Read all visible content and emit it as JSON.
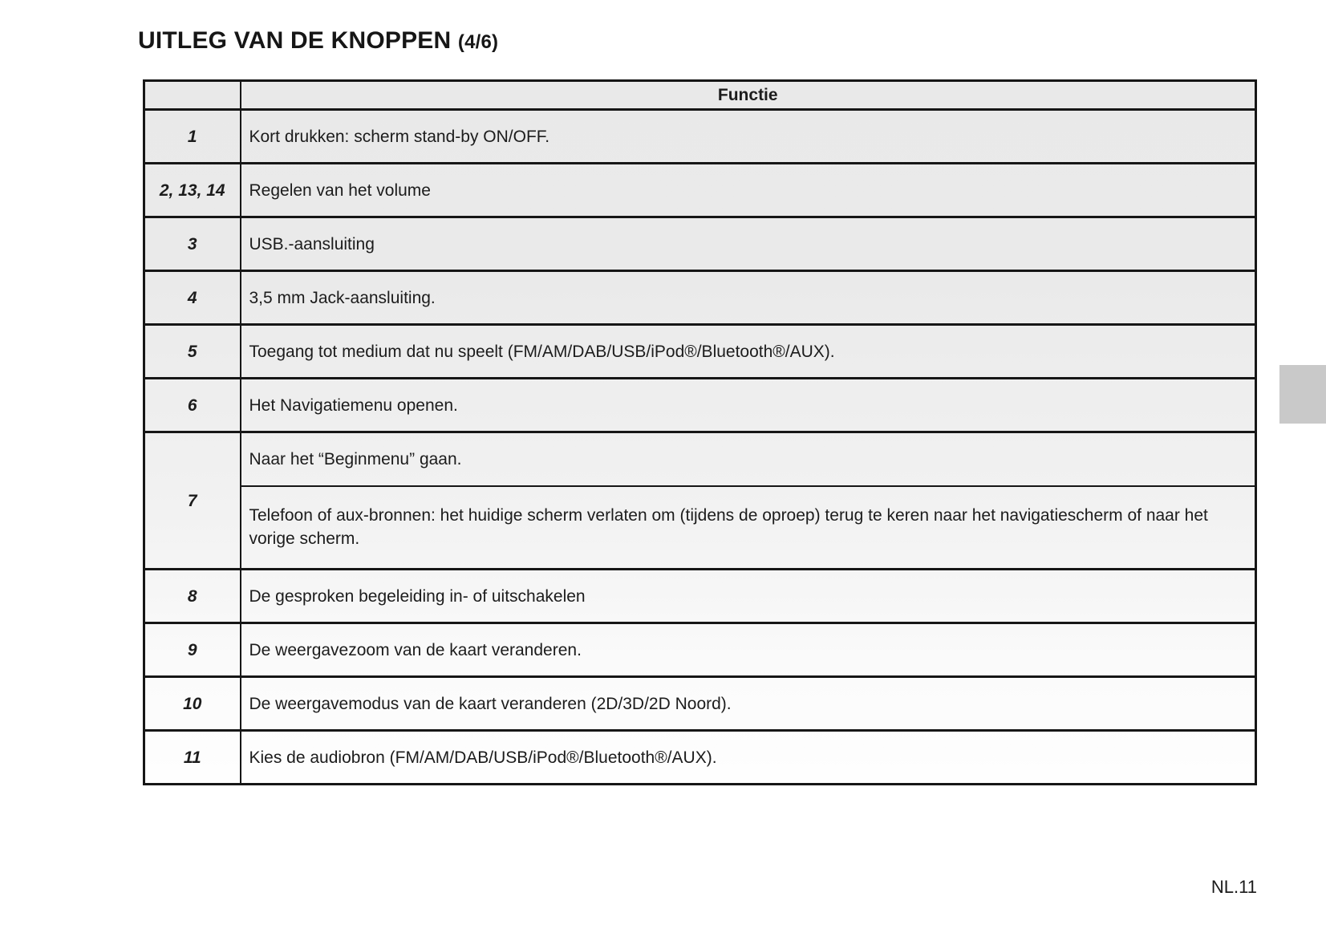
{
  "header": {
    "title": "UITLEG VAN DE KNOPPEN",
    "title_suffix": "(4/6)"
  },
  "table": {
    "header_label": "Functie",
    "rows": [
      {
        "key": "1",
        "functions": [
          "Kort drukken: scherm stand-by ON/OFF."
        ]
      },
      {
        "key": "2, 13, 14",
        "functions": [
          "Regelen van het volume"
        ]
      },
      {
        "key": "3",
        "functions": [
          "USB.-aansluiting"
        ]
      },
      {
        "key": "4",
        "functions": [
          "3,5 mm Jack-aansluiting."
        ]
      },
      {
        "key": "5",
        "functions": [
          "Toegang tot medium dat nu speelt (FM/AM/DAB/USB/iPod®/Bluetooth®/AUX)."
        ]
      },
      {
        "key": "6",
        "functions": [
          "Het Navigatiemenu openen."
        ]
      },
      {
        "key": "7",
        "functions": [
          "Naar het “Beginmenu” gaan.",
          "Telefoon of aux-bronnen: het huidige scherm verlaten om (tijdens de oproep) terug te keren naar het navigatiescherm of naar het vorige scherm."
        ]
      },
      {
        "key": "8",
        "functions": [
          "De gesproken begeleiding in- of uitschakelen"
        ]
      },
      {
        "key": "9",
        "functions": [
          "De weergavezoom van de kaart veranderen."
        ]
      },
      {
        "key": "10",
        "functions": [
          "De weergavemodus van de kaart veranderen (2D/3D/2D Noord)."
        ]
      },
      {
        "key": "11",
        "functions": [
          "Kies de audiobron (FM/AM/DAB/USB/iPod®/Bluetooth®/AUX)."
        ]
      }
    ]
  },
  "footer": {
    "page_number": "NL.11"
  },
  "side_tab": {
    "color": "#c9c9c9"
  }
}
